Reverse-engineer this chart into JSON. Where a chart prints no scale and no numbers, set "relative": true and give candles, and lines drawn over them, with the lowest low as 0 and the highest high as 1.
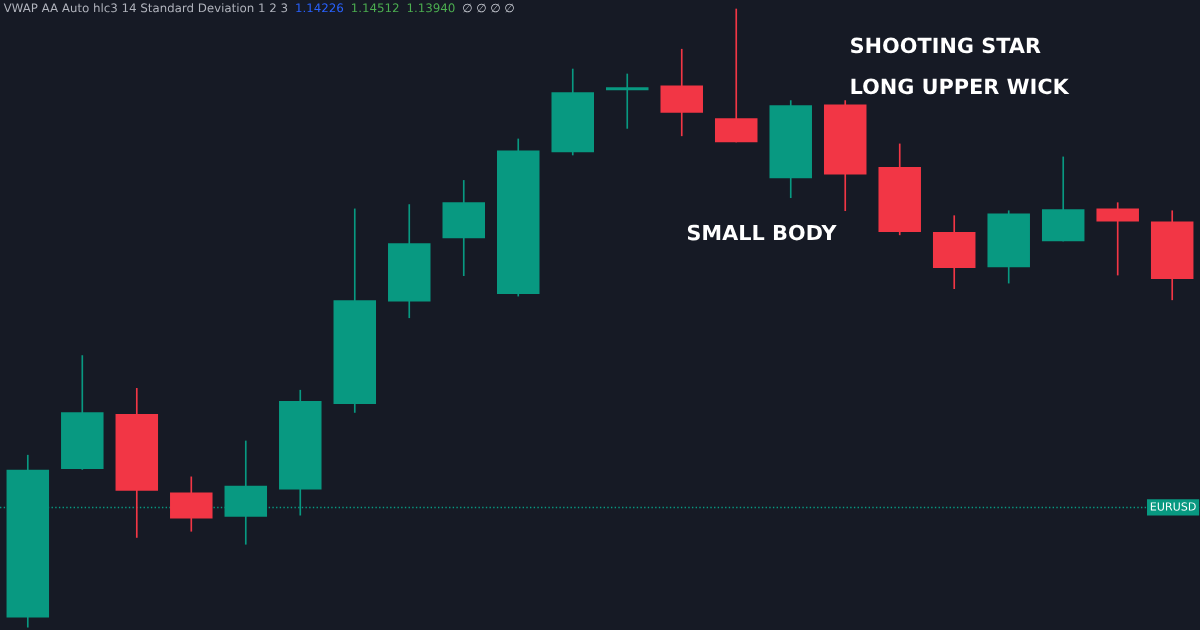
{
  "chart_data": {
    "type": "candlestick",
    "relative": true,
    "title": "VWAP AA Auto hlc3 14 Standard Deviation 1 2 3",
    "categories": [
      null,
      null,
      null,
      null,
      null,
      null,
      null,
      null,
      null,
      null,
      null,
      null,
      null,
      null,
      null,
      null,
      null,
      null,
      null,
      null,
      null,
      null
    ],
    "ohlc": [
      [
        0.016,
        0.279,
        0,
        0.255
      ],
      [
        0.256,
        0.44,
        0.255,
        0.348
      ],
      [
        0.345,
        0.387,
        0.145,
        0.221
      ],
      [
        0.218,
        0.244,
        0.155,
        0.176
      ],
      [
        0.179,
        0.302,
        0.134,
        0.229
      ],
      [
        0.223,
        0.384,
        0.181,
        0.366
      ],
      [
        0.361,
        0.677,
        0.347,
        0.529
      ],
      [
        0.527,
        0.684,
        0.5,
        0.621
      ],
      [
        0.629,
        0.723,
        0.568,
        0.687
      ],
      [
        0.539,
        0.79,
        0.535,
        0.771
      ],
      [
        0.768,
        0.903,
        0.763,
        0.865
      ],
      [
        0.868,
        0.895,
        0.806,
        0.873
      ],
      [
        0.876,
        0.935,
        0.794,
        0.832
      ],
      [
        0.823,
        1.0,
        0.784,
        0.784
      ],
      [
        0.726,
        0.852,
        0.694,
        0.844
      ],
      [
        0.845,
        0.852,
        0.673,
        0.732
      ],
      [
        0.744,
        0.782,
        0.634,
        0.639
      ],
      [
        0.639,
        0.666,
        0.547,
        0.581
      ],
      [
        0.582,
        0.674,
        0.556,
        0.669
      ],
      [
        0.624,
        0.761,
        0.624,
        0.676
      ],
      [
        0.677,
        0.687,
        0.569,
        0.656
      ],
      [
        0.656,
        0.674,
        0.529,
        0.563
      ]
    ],
    "colors": [
      "#089981",
      "#089981",
      "#f23645",
      "#f23645",
      "#089981",
      "#089981",
      "#089981",
      "#089981",
      "#089981",
      "#089981",
      "#089981",
      "#089981",
      "#f23645",
      "#f23645",
      "#089981",
      "#f23645",
      "#f23645",
      "#f23645",
      "#089981",
      "#089981",
      "#f23645",
      "#f23645"
    ],
    "ref_lines": [
      {
        "axis": "y",
        "value": 0.194,
        "label": "EURUSD",
        "color": "#089981",
        "line_style": "dotted"
      }
    ],
    "annotations": [
      "1.14226",
      "1.14512",
      "1.13940",
      "∅ ∅ ∅ ∅",
      "SHOOTING STAR",
      "LONG UPPER WICK",
      "SMALL BODY"
    ]
  }
}
